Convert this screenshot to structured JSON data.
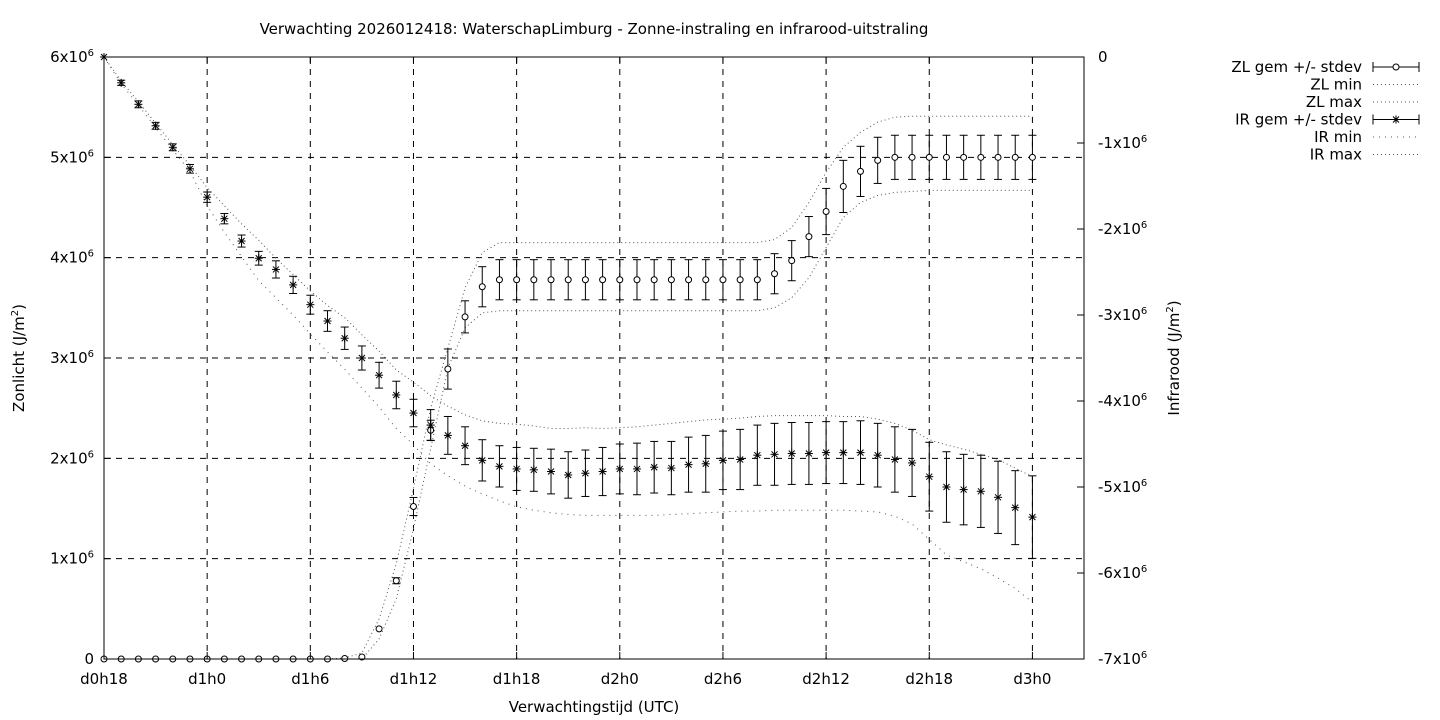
{
  "chart_data": {
    "type": "line",
    "title": "Verwachting 2026012418: WaterschapLimburg - Zonne-instraling en infrarood-uitstraling",
    "xlabel": "Verwachtingstijd (UTC)",
    "ylabel": "Zonlicht (J/m²)",
    "y2label": "Infrarood (J/m²)",
    "ylabel_parts": [
      "Zonlicht (J/m",
      "2",
      ")"
    ],
    "y2label_parts": [
      "Infrarood (J/m",
      "2",
      ")"
    ],
    "x_unit": "hours since d0h0",
    "xlim": [
      18,
      75
    ],
    "ylim": [
      0,
      6000000
    ],
    "y2lim": [
      -7000000,
      0
    ],
    "grid": true,
    "legend_position": "outside-right",
    "x_ticks": [
      {
        "value": 18,
        "label": "d0h18"
      },
      {
        "value": 24,
        "label": "d1h0"
      },
      {
        "value": 30,
        "label": "d1h6"
      },
      {
        "value": 36,
        "label": "d1h12"
      },
      {
        "value": 42,
        "label": "d1h18"
      },
      {
        "value": 48,
        "label": "d2h0"
      },
      {
        "value": 54,
        "label": "d2h6"
      },
      {
        "value": 60,
        "label": "d2h12"
      },
      {
        "value": 66,
        "label": "d2h18"
      },
      {
        "value": 72,
        "label": "d3h0"
      }
    ],
    "y_ticks": [
      {
        "value": 0,
        "base": "0",
        "exp": ""
      },
      {
        "value": 1000000,
        "base": "1x10",
        "exp": "6"
      },
      {
        "value": 2000000,
        "base": "2x10",
        "exp": "6"
      },
      {
        "value": 3000000,
        "base": "3x10",
        "exp": "6"
      },
      {
        "value": 4000000,
        "base": "4x10",
        "exp": "6"
      },
      {
        "value": 5000000,
        "base": "5x10",
        "exp": "6"
      },
      {
        "value": 6000000,
        "base": "6x10",
        "exp": "6"
      }
    ],
    "y2_ticks": [
      {
        "value": 0,
        "base": "0",
        "exp": ""
      },
      {
        "value": -1000000,
        "base": "-1x10",
        "exp": "6"
      },
      {
        "value": -2000000,
        "base": "-2x10",
        "exp": "6"
      },
      {
        "value": -3000000,
        "base": "-3x10",
        "exp": "6"
      },
      {
        "value": -4000000,
        "base": "-4x10",
        "exp": "6"
      },
      {
        "value": -5000000,
        "base": "-5x10",
        "exp": "6"
      },
      {
        "value": -6000000,
        "base": "-6x10",
        "exp": "6"
      },
      {
        "value": -7000000,
        "base": "-7x10",
        "exp": "6"
      }
    ],
    "x": [
      18,
      19,
      20,
      21,
      22,
      23,
      24,
      25,
      26,
      27,
      28,
      29,
      30,
      31,
      32,
      33,
      34,
      35,
      36,
      37,
      38,
      39,
      40,
      41,
      42,
      43,
      44,
      45,
      46,
      47,
      48,
      49,
      50,
      51,
      52,
      53,
      54,
      55,
      56,
      57,
      58,
      59,
      60,
      61,
      62,
      63,
      64,
      65,
      66,
      67,
      68,
      69,
      70,
      71,
      72
    ],
    "series": [
      {
        "name": "ZL gem +/- stdev",
        "axis": "y",
        "marker": "circle",
        "values": [
          0,
          0,
          0,
          0,
          0,
          0,
          0,
          0,
          0,
          0,
          0,
          0,
          0,
          0,
          5000,
          20000,
          300000,
          780000,
          1520000,
          2280000,
          2890000,
          3410000,
          3710000,
          3780000,
          3780000,
          3780000,
          3780000,
          3780000,
          3780000,
          3780000,
          3780000,
          3780000,
          3780000,
          3780000,
          3780000,
          3780000,
          3780000,
          3780000,
          3780000,
          3840000,
          3970000,
          4210000,
          4460000,
          4710000,
          4860000,
          4970000,
          5000000,
          5000000,
          5000000,
          5000000,
          5000000,
          5000000,
          5000000,
          5000000,
          5000000
        ],
        "stdev": [
          0,
          0,
          0,
          0,
          0,
          0,
          0,
          0,
          0,
          0,
          0,
          0,
          0,
          0,
          0,
          0,
          0,
          30000,
          90000,
          100000,
          200000,
          160000,
          200000,
          200000,
          200000,
          200000,
          200000,
          200000,
          200000,
          200000,
          200000,
          200000,
          200000,
          200000,
          200000,
          200000,
          200000,
          200000,
          200000,
          200000,
          200000,
          200000,
          230000,
          260000,
          250000,
          230000,
          220000,
          220000,
          220000,
          220000,
          220000,
          220000,
          220000,
          220000,
          220000
        ]
      },
      {
        "name": "ZL min",
        "axis": "y",
        "values": [
          0,
          0,
          0,
          0,
          0,
          0,
          0,
          0,
          0,
          0,
          0,
          0,
          0,
          0,
          0,
          0,
          200000,
          600000,
          1300000,
          2100000,
          2900000,
          3300000,
          3450000,
          3470000,
          3470000,
          3470000,
          3470000,
          3470000,
          3470000,
          3470000,
          3470000,
          3470000,
          3470000,
          3470000,
          3470000,
          3470000,
          3470000,
          3470000,
          3470000,
          3500000,
          3600000,
          3800000,
          4100000,
          4400000,
          4550000,
          4620000,
          4650000,
          4660000,
          4670000,
          4670000,
          4670000,
          4670000,
          4670000,
          4670000,
          4670000
        ]
      },
      {
        "name": "ZL max",
        "axis": "y",
        "values": [
          0,
          0,
          0,
          0,
          0,
          0,
          0,
          0,
          0,
          0,
          0,
          0,
          0,
          0,
          10000,
          60000,
          400000,
          950000,
          1700000,
          2500000,
          3100000,
          3700000,
          4050000,
          4150000,
          4150000,
          4150000,
          4150000,
          4150000,
          4150000,
          4150000,
          4150000,
          4150000,
          4150000,
          4150000,
          4150000,
          4150000,
          4150000,
          4150000,
          4150000,
          4180000,
          4300000,
          4550000,
          4850000,
          5100000,
          5250000,
          5350000,
          5400000,
          5410000,
          5410000,
          5410000,
          5410000,
          5410000,
          5410000,
          5410000,
          5410000
        ]
      },
      {
        "name": "IR gem +/- stdev",
        "axis": "y2",
        "marker": "star",
        "values": [
          0,
          -300000,
          -550000,
          -800000,
          -1050000,
          -1300000,
          -1630000,
          -1880000,
          -2140000,
          -2340000,
          -2470000,
          -2650000,
          -2880000,
          -3070000,
          -3270000,
          -3500000,
          -3700000,
          -3930000,
          -4140000,
          -4280000,
          -4400000,
          -4520000,
          -4690000,
          -4760000,
          -4790000,
          -4800000,
          -4820000,
          -4860000,
          -4840000,
          -4820000,
          -4790000,
          -4790000,
          -4770000,
          -4780000,
          -4740000,
          -4730000,
          -4690000,
          -4680000,
          -4630000,
          -4620000,
          -4610000,
          -4610000,
          -4600000,
          -4600000,
          -4600000,
          -4630000,
          -4680000,
          -4720000,
          -4880000,
          -5000000,
          -5030000,
          -5050000,
          -5120000,
          -5240000,
          -5350000
        ],
        "stdev": [
          0,
          30000,
          40000,
          40000,
          40000,
          50000,
          60000,
          60000,
          70000,
          80000,
          100000,
          100000,
          110000,
          120000,
          130000,
          140000,
          150000,
          160000,
          160000,
          180000,
          220000,
          220000,
          240000,
          240000,
          250000,
          250000,
          260000,
          270000,
          270000,
          280000,
          290000,
          300000,
          300000,
          310000,
          320000,
          330000,
          340000,
          350000,
          350000,
          360000,
          360000,
          360000,
          360000,
          360000,
          370000,
          370000,
          380000,
          390000,
          400000,
          410000,
          410000,
          420000,
          420000,
          430000,
          480000
        ]
      },
      {
        "name": "IR min",
        "axis": "y2",
        "values": [
          0,
          -310000,
          -560000,
          -820000,
          -1080000,
          -1330000,
          -1730000,
          -2040000,
          -2320000,
          -2600000,
          -2800000,
          -3000000,
          -3220000,
          -3430000,
          -3630000,
          -3850000,
          -4070000,
          -4320000,
          -4510000,
          -4730000,
          -4870000,
          -4990000,
          -5080000,
          -5160000,
          -5230000,
          -5270000,
          -5300000,
          -5320000,
          -5330000,
          -5330000,
          -5330000,
          -5330000,
          -5330000,
          -5320000,
          -5310000,
          -5300000,
          -5290000,
          -5280000,
          -5280000,
          -5270000,
          -5270000,
          -5270000,
          -5270000,
          -5270000,
          -5280000,
          -5290000,
          -5340000,
          -5430000,
          -5610000,
          -5790000,
          -5870000,
          -5950000,
          -6060000,
          -6180000,
          -6340000
        ]
      },
      {
        "name": "IR max",
        "axis": "y2",
        "values": [
          0,
          -280000,
          -520000,
          -770000,
          -1020000,
          -1260000,
          -1520000,
          -1730000,
          -1940000,
          -2130000,
          -2340000,
          -2530000,
          -2720000,
          -2890000,
          -3030000,
          -3230000,
          -3420000,
          -3640000,
          -3780000,
          -3940000,
          -4060000,
          -4160000,
          -4230000,
          -4260000,
          -4270000,
          -4290000,
          -4320000,
          -4320000,
          -4310000,
          -4320000,
          -4310000,
          -4300000,
          -4280000,
          -4260000,
          -4240000,
          -4220000,
          -4210000,
          -4200000,
          -4180000,
          -4170000,
          -4170000,
          -4170000,
          -4170000,
          -4180000,
          -4180000,
          -4210000,
          -4260000,
          -4340000,
          -4450000,
          -4510000,
          -4560000,
          -4620000,
          -4680000,
          -4780000,
          -4880000
        ]
      }
    ]
  }
}
